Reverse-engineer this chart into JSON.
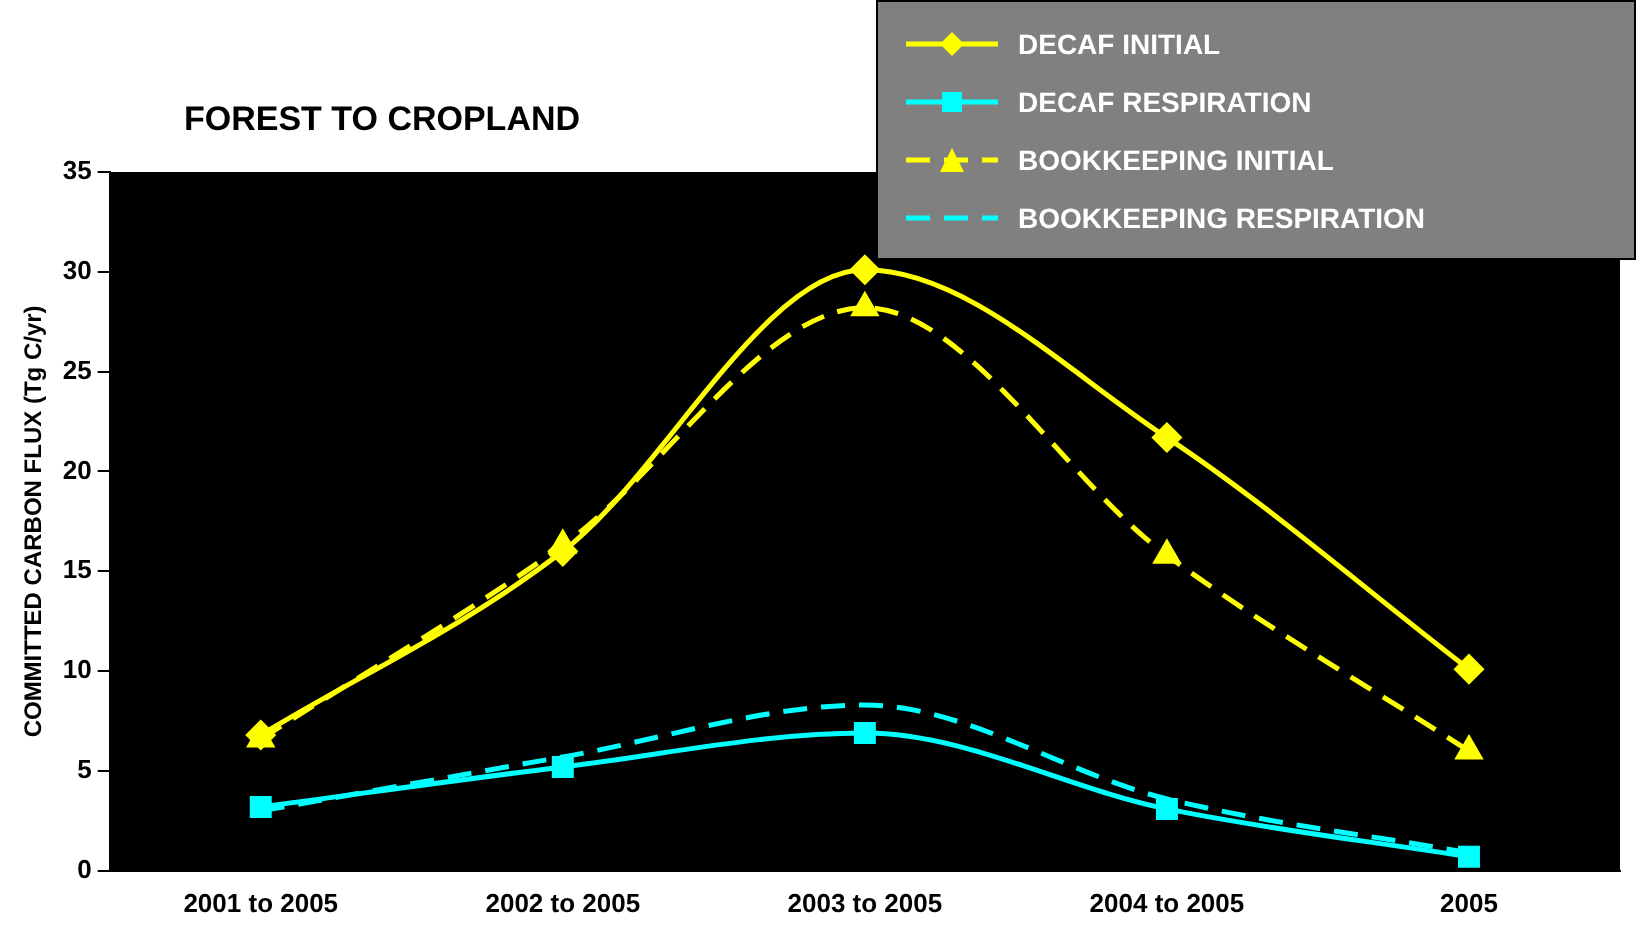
{
  "chart_data": {
    "type": "line",
    "title": "FOREST TO CROPLAND",
    "ylabel": "COMMITTED CARBON FLUX (Tg C/yr)",
    "categories": [
      "2001 to 2005",
      "2002 to 2005",
      "2003 to 2005",
      "2004 to 2005",
      "2005"
    ],
    "ylim": [
      0,
      35
    ],
    "yticks": [
      0,
      5,
      10,
      15,
      20,
      25,
      30,
      35
    ],
    "grid": false,
    "legend": "top right",
    "series": [
      {
        "name": "DECAF INITIAL",
        "color": "#ffff00",
        "marker": "diamond",
        "line_style": "solid",
        "values": [
          6.8,
          16,
          30.1,
          21.7,
          10.1
        ]
      },
      {
        "name": "DECAF RESPIRATION",
        "color": "#00ffff",
        "marker": "square",
        "line_style": "solid",
        "values": [
          3.2,
          5.2,
          6.9,
          3.1,
          0.7
        ]
      },
      {
        "name": "BOOKKEEPING INITIAL",
        "color": "#ffff00",
        "marker": "triangle",
        "line_style": "dashed",
        "values": [
          6.6,
          16.3,
          28.2,
          15.8,
          6
        ]
      },
      {
        "name": "BOOKKEEPING RESPIRATION",
        "color": "#00ffff",
        "marker": "none",
        "line_style": "dashed",
        "values": [
          3,
          5.7,
          8.3,
          3.6,
          0.9
        ]
      }
    ]
  }
}
